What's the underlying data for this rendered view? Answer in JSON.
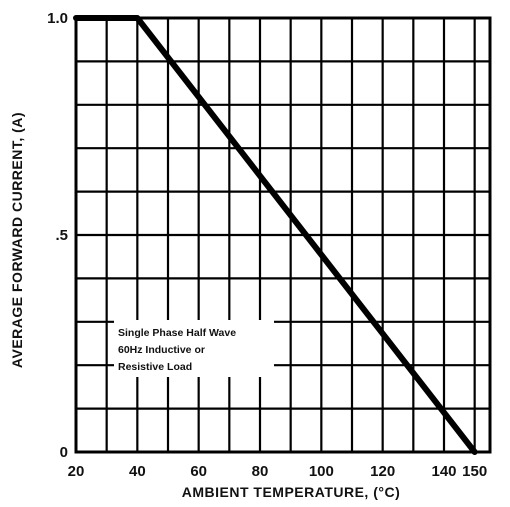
{
  "chart_data": {
    "type": "line",
    "title": "",
    "xlabel": "AMBIENT TEMPERATURE, (°C)",
    "ylabel": "AVERAGE FORWARD CURRENT, (A)",
    "xlim": [
      20,
      155
    ],
    "ylim": [
      0,
      1.0
    ],
    "x_ticks": [
      {
        "value": 20,
        "label": "20"
      },
      {
        "value": 40,
        "label": "40"
      },
      {
        "value": 60,
        "label": "60"
      },
      {
        "value": 80,
        "label": "80"
      },
      {
        "value": 100,
        "label": "100"
      },
      {
        "value": 120,
        "label": "120"
      },
      {
        "value": 140,
        "label": "140"
      },
      {
        "value": 150,
        "label": "150"
      }
    ],
    "y_ticks": [
      {
        "value": 0,
        "label": "0"
      },
      {
        "value": 0.5,
        "label": ".5"
      },
      {
        "value": 1.0,
        "label": "1.0"
      }
    ],
    "grid": true,
    "series": [
      {
        "x": [
          20,
          40,
          150
        ],
        "y": [
          1.0,
          1.0,
          0.0
        ]
      }
    ],
    "annotation": [
      "Single Phase Half Wave",
      "60Hz Inductive or",
      "Resistive Load"
    ],
    "colors": {
      "line": "#000000",
      "grid": "#000000",
      "background": "#ffffff"
    }
  }
}
